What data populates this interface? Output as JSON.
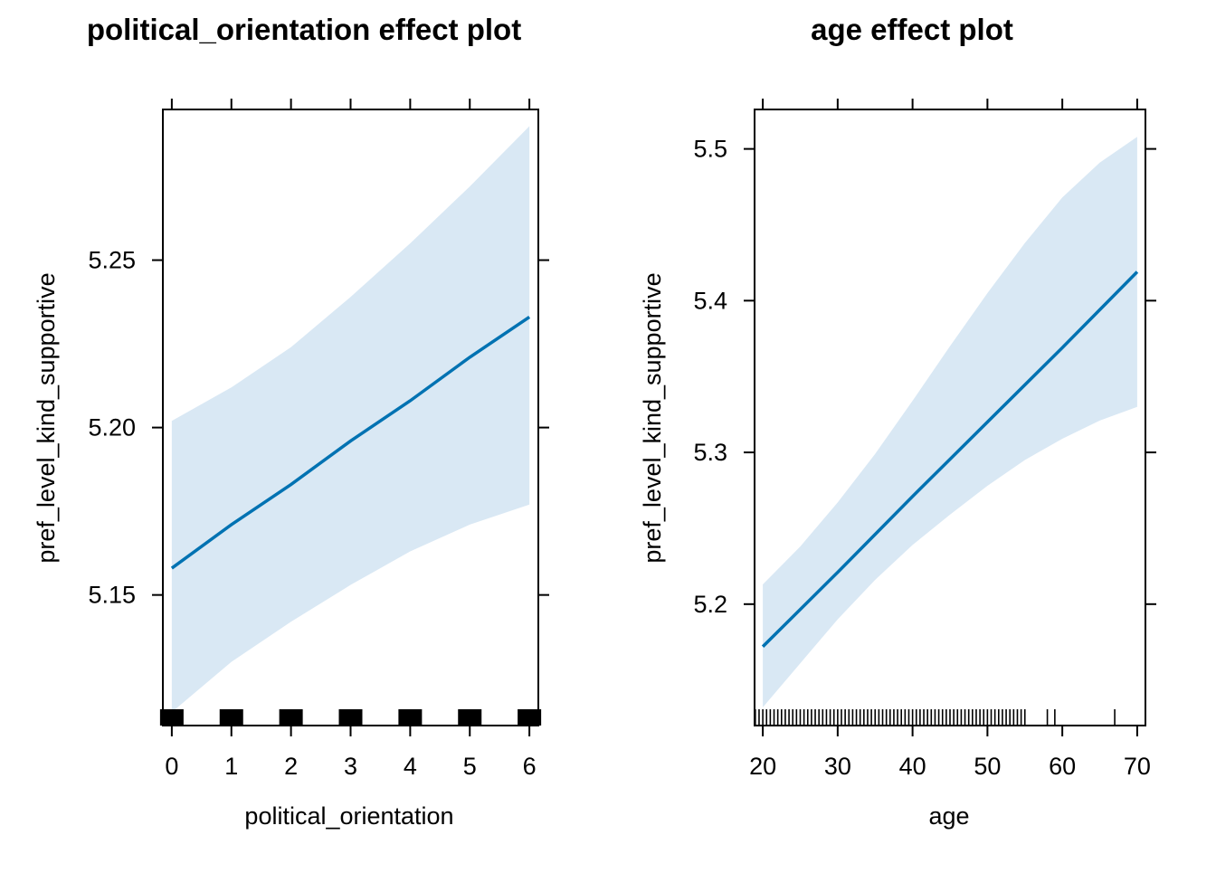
{
  "chart_data": [
    {
      "type": "line",
      "title": "political_orientation effect plot",
      "xlabel": "political_orientation",
      "ylabel": "pref_level_kind_supportive",
      "xlim": [
        -0.15,
        6.15
      ],
      "ylim": [
        5.111,
        5.295
      ],
      "x_ticks": [
        0,
        1,
        2,
        3,
        4,
        5,
        6
      ],
      "y_ticks": [
        5.15,
        5.2,
        5.25
      ],
      "y_tick_labels": [
        "5.15",
        "5.20",
        "5.25"
      ],
      "line_color": "#0072B2",
      "band_color": "#D9E8F4",
      "series": [
        {
          "x": [
            0,
            1,
            2,
            3,
            4,
            5,
            6
          ],
          "values": [
            5.158,
            5.171,
            5.183,
            5.196,
            5.208,
            5.221,
            5.233
          ]
        }
      ],
      "band_upper": [
        5.202,
        5.212,
        5.224,
        5.239,
        5.255,
        5.272,
        5.29
      ],
      "band_lower": [
        5.115,
        5.13,
        5.142,
        5.153,
        5.163,
        5.171,
        5.177
      ],
      "rug": [
        0,
        1,
        2,
        3,
        4,
        5,
        6
      ],
      "rug_style": "block"
    },
    {
      "type": "line",
      "title": "age effect plot",
      "xlabel": "age",
      "ylabel": "pref_level_kind_supportive",
      "xlim": [
        18.9,
        71.1
      ],
      "ylim": [
        5.12,
        5.526
      ],
      "x_ticks": [
        20,
        30,
        40,
        50,
        60,
        70
      ],
      "y_ticks": [
        5.2,
        5.3,
        5.4,
        5.5
      ],
      "y_tick_labels": [
        "5.2",
        "5.3",
        "5.4",
        "5.5"
      ],
      "line_color": "#0072B2",
      "band_color": "#D9E8F4",
      "series": [
        {
          "x": [
            20,
            30,
            40,
            50,
            60,
            70
          ],
          "values": [
            5.172,
            5.221,
            5.271,
            5.32,
            5.369,
            5.419
          ]
        }
      ],
      "band_x": [
        20,
        25,
        30,
        35,
        40,
        45,
        50,
        55,
        60,
        65,
        70
      ],
      "band_upper": [
        5.213,
        5.238,
        5.267,
        5.299,
        5.334,
        5.37,
        5.405,
        5.438,
        5.468,
        5.491,
        5.508
      ],
      "band_lower": [
        5.132,
        5.161,
        5.19,
        5.216,
        5.239,
        5.259,
        5.278,
        5.295,
        5.309,
        5.321,
        5.33
      ],
      "rug": [
        19,
        19.5,
        20,
        20.5,
        21,
        21.5,
        22,
        22.5,
        23,
        23.5,
        24,
        24.5,
        25,
        25.5,
        26,
        26.5,
        27,
        27.5,
        28,
        28.5,
        29,
        29.5,
        30,
        30.5,
        31,
        31.5,
        32,
        32.5,
        33,
        33.5,
        34,
        34.5,
        35,
        35.5,
        36,
        36.5,
        37,
        37.5,
        38,
        38.5,
        39,
        39.5,
        40,
        40.5,
        41,
        41.5,
        42,
        42.5,
        43,
        43.5,
        44,
        44.5,
        45,
        45.5,
        46,
        46.5,
        47,
        47.5,
        48,
        48.5,
        49,
        49.5,
        50,
        50.5,
        51,
        51.5,
        52,
        52.5,
        53,
        53.5,
        54,
        54.5,
        55,
        58,
        59,
        67
      ],
      "rug_style": "ticks"
    }
  ]
}
